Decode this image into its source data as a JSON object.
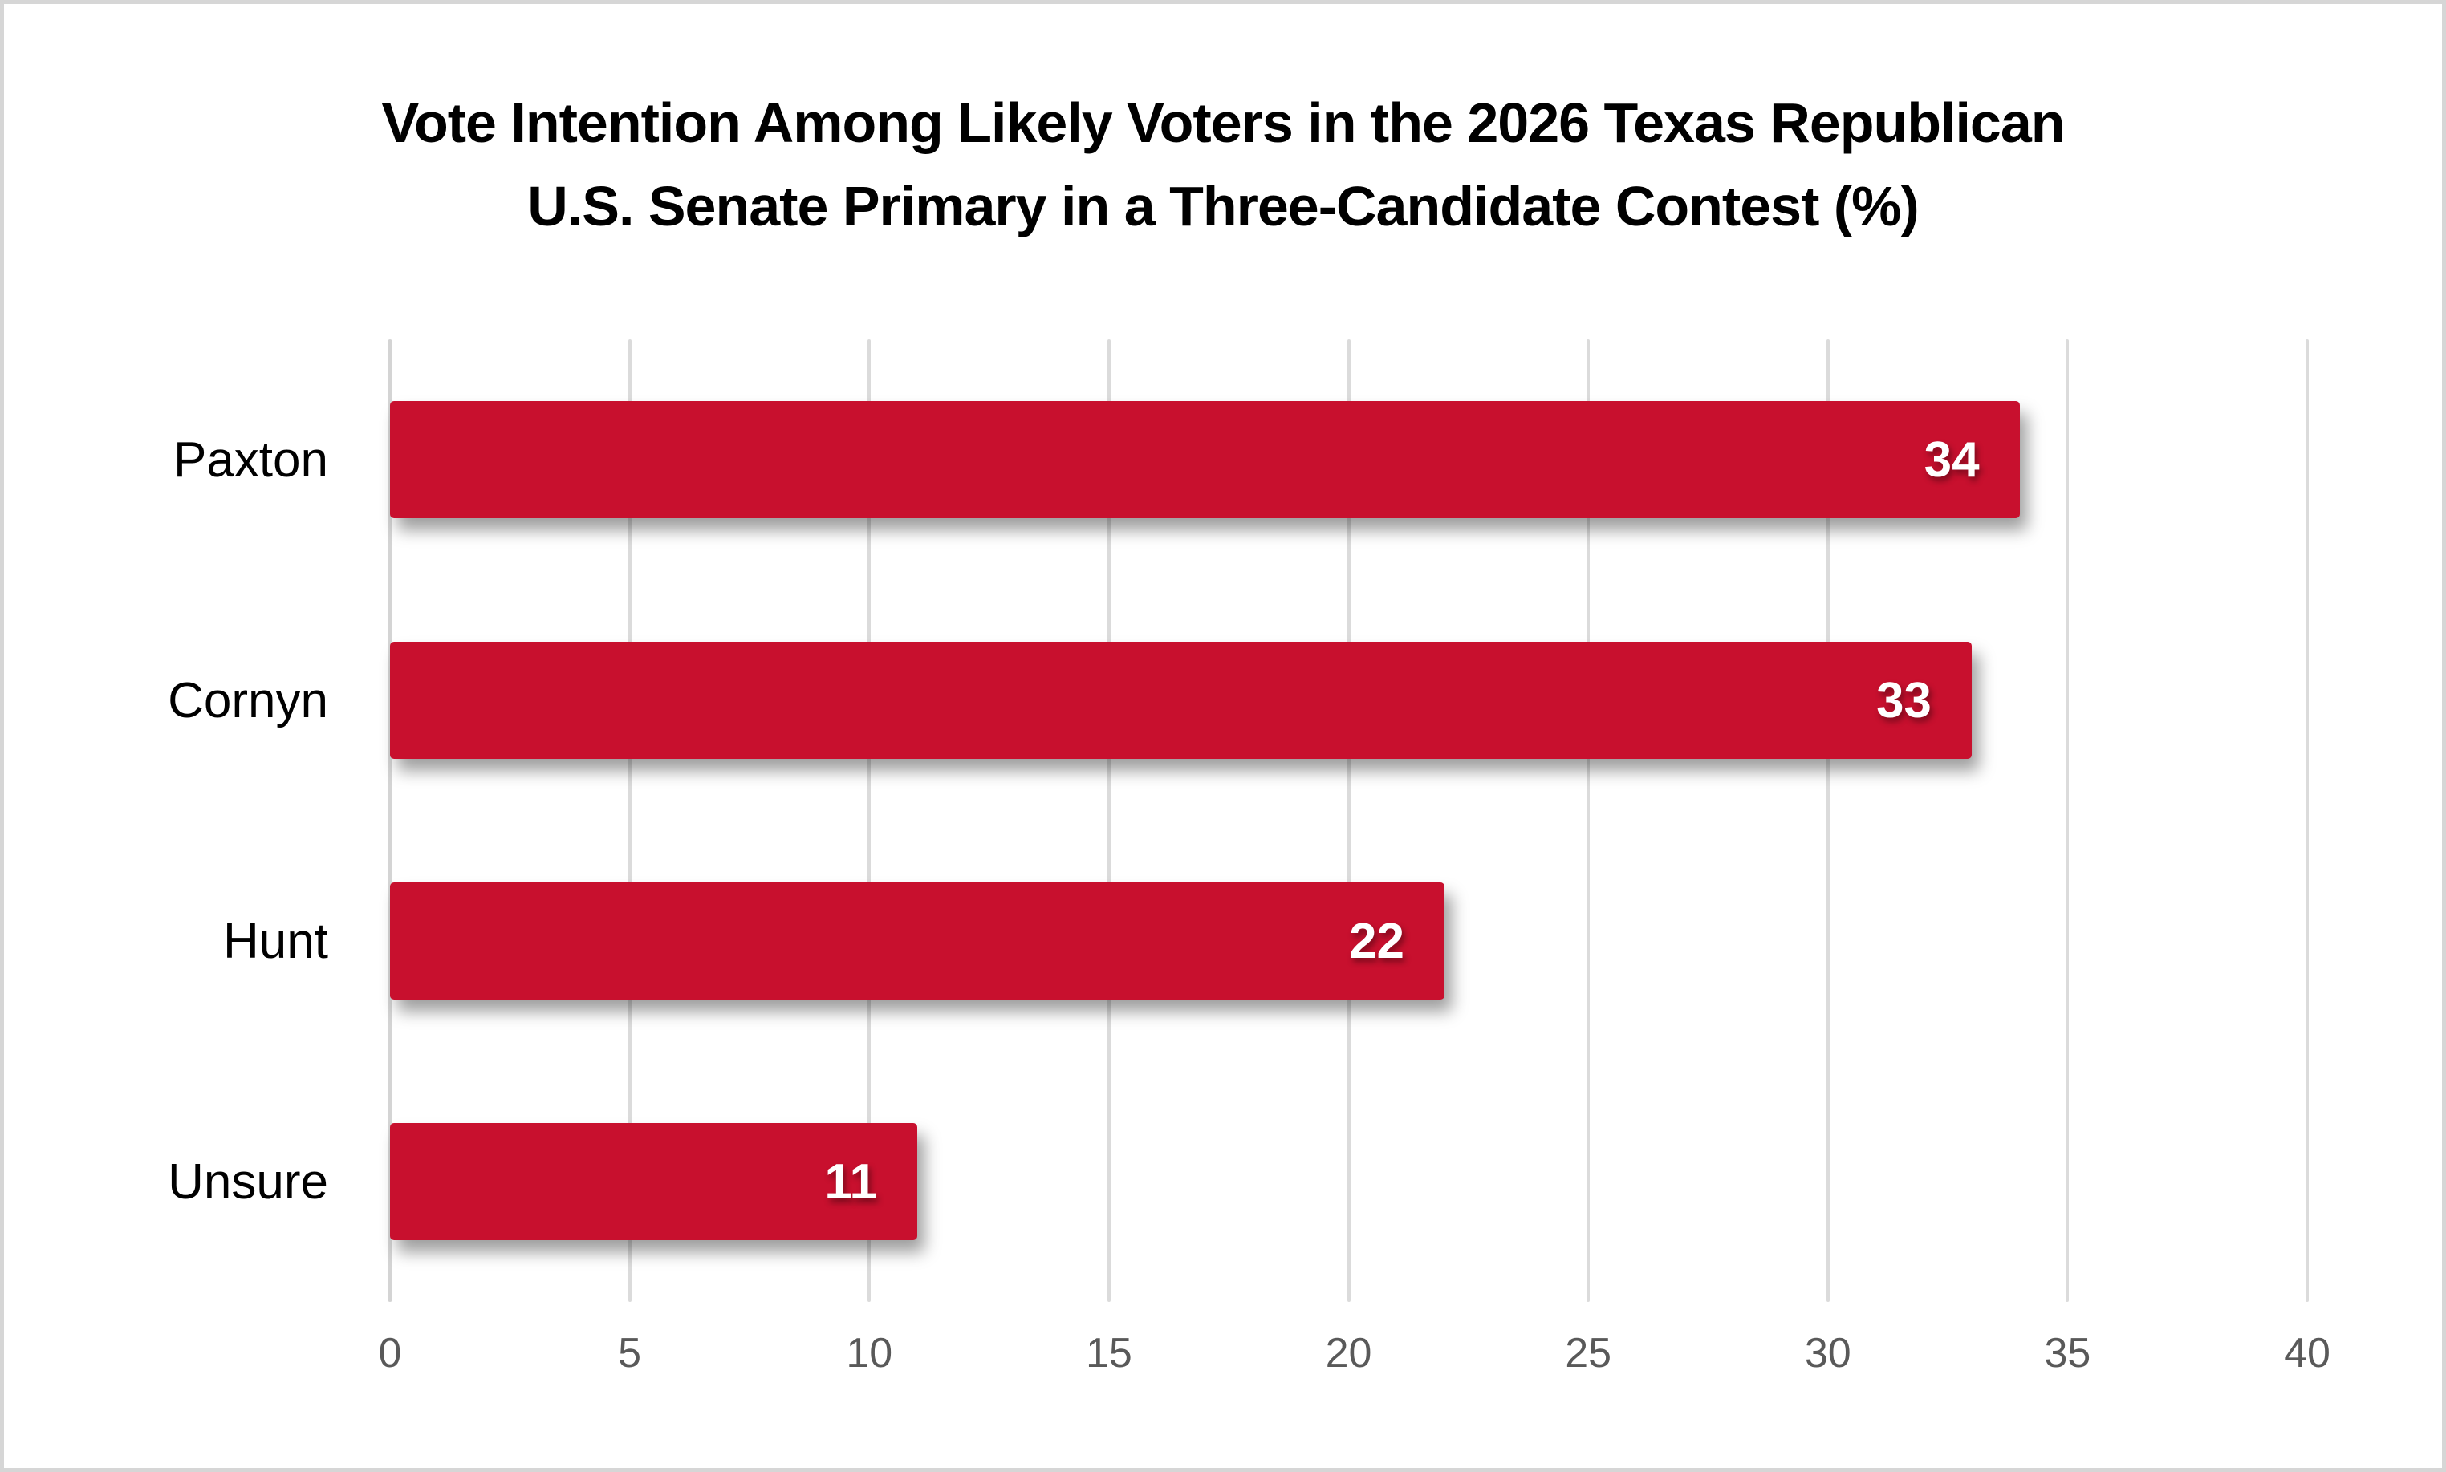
{
  "chart_data": {
    "type": "bar",
    "orientation": "horizontal",
    "title": "Vote Intention Among Likely Voters in the 2026 Texas Republican U.S. Senate Primary in a Three-Candidate Contest (%)",
    "title_lines": [
      "Vote Intention Among Likely Voters in the 2026 Texas Republican",
      "U.S. Senate Primary in a Three-Candidate Contest (%)"
    ],
    "categories": [
      "Paxton",
      "Cornyn",
      "Hunt",
      "Unsure"
    ],
    "values": [
      34,
      33,
      22,
      11
    ],
    "value_labels": [
      "34",
      "33",
      "22",
      "11"
    ],
    "xlabel": "",
    "ylabel": "",
    "xlim": [
      0,
      40
    ],
    "xticks": [
      0,
      5,
      10,
      15,
      20,
      25,
      30,
      35,
      40
    ],
    "grid": true,
    "legend": false,
    "bar_color": "#C8102E",
    "value_label_color": "#FFFFFF",
    "category_label_color": "#000000",
    "title_color": "#000000",
    "tick_label_color": "#595959",
    "gridline_color": "#DBDBDB",
    "zero_line_color": "#D4D4D4",
    "background_color": "#FFFFFF",
    "border_color": "#D6D6D6"
  }
}
